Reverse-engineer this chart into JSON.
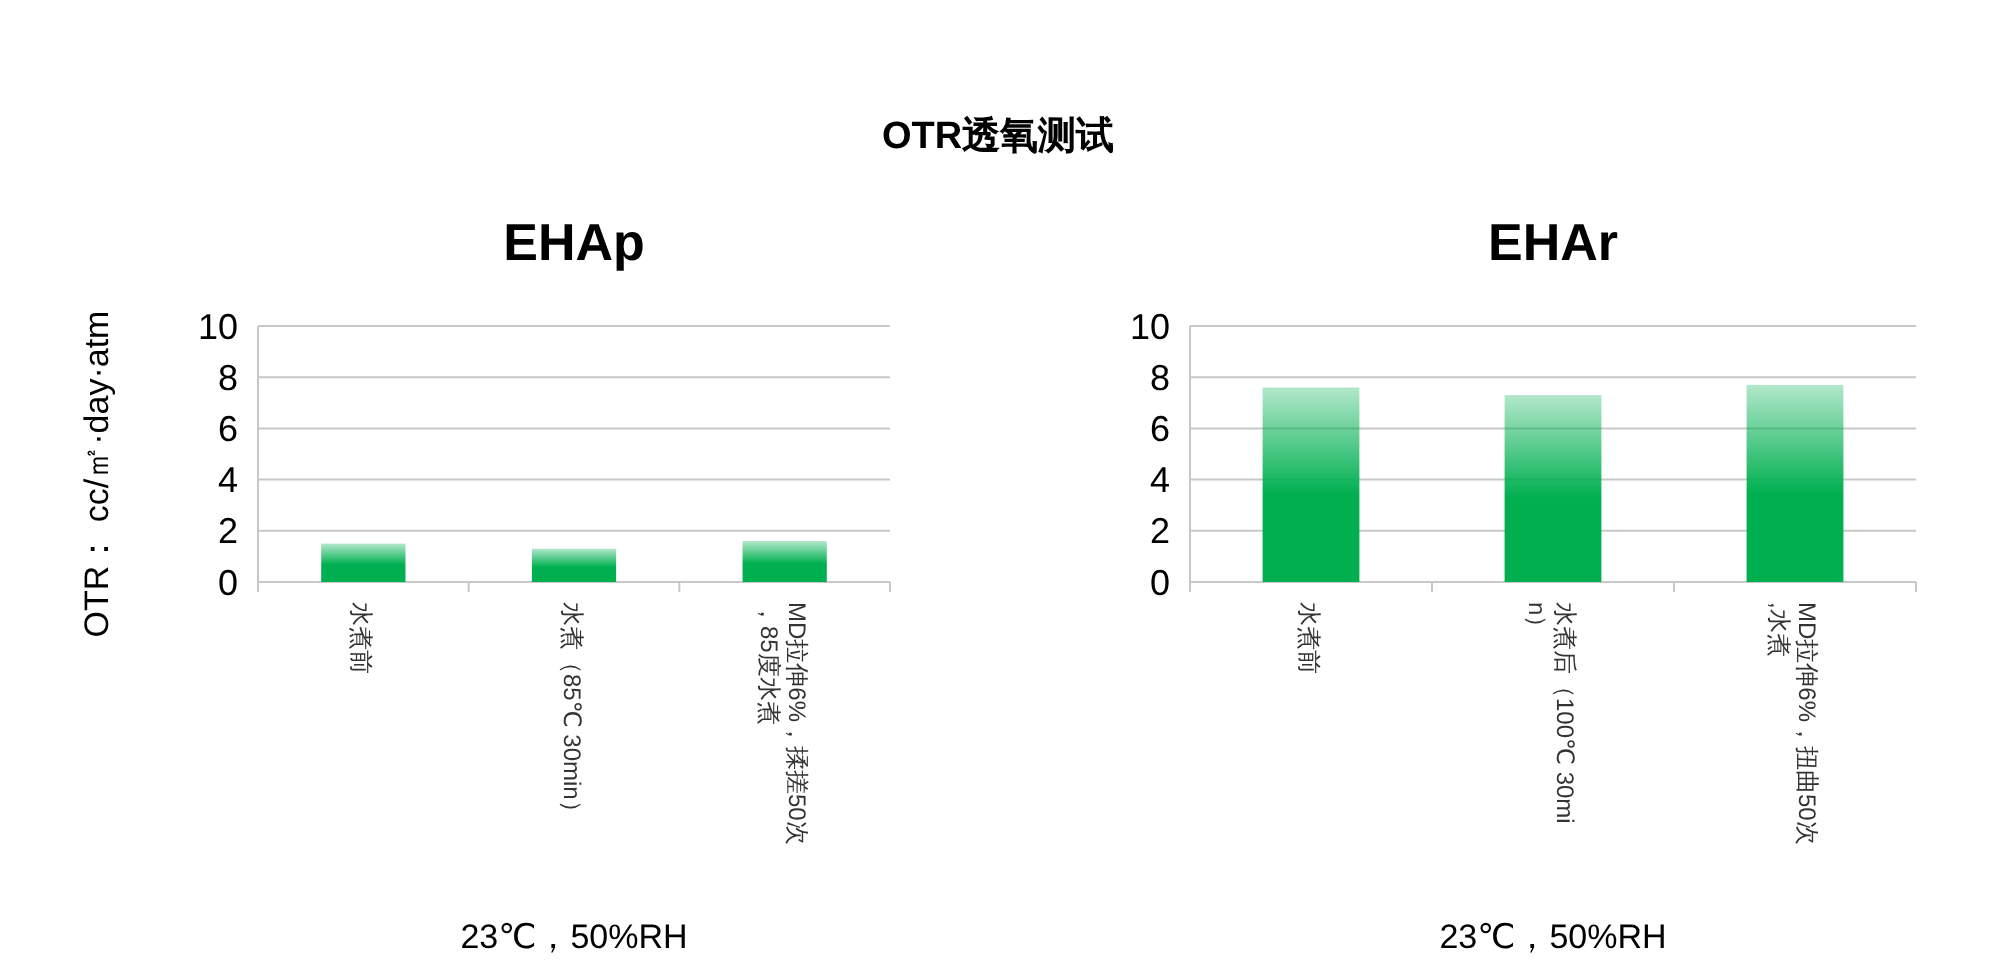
{
  "chart_data": [
    {
      "type": "other",
      "title": "OTR透氧测试"
    },
    {
      "type": "bar",
      "title": "EHAp",
      "ylabel": "OTR： cc/㎡·day·atm",
      "categories": [
        "水煮前",
        "水煮（85℃ 30min）",
        "MD拉伸6%，揉搓50次，85度水煮"
      ],
      "values": [
        1.5,
        1.3,
        1.6
      ],
      "color": "#00b050",
      "ylim": [
        0,
        10
      ],
      "yticks": [
        0,
        2,
        4,
        6,
        8,
        10
      ],
      "grid": "y",
      "annotations": [
        "23℃，50%RH"
      ]
    },
    {
      "type": "bar",
      "title": "EHAr",
      "categories": [
        "水煮前",
        "水煮后（100℃ 30min）",
        "MD拉伸6%，扭曲50次,水煮"
      ],
      "values": [
        7.6,
        7.3,
        7.7
      ],
      "color": "#00b050",
      "ylim": [
        0,
        10
      ],
      "yticks": [
        0,
        2,
        4,
        6,
        8,
        10
      ],
      "grid": "y",
      "annotations": [
        "23℃，50%RH"
      ]
    }
  ]
}
